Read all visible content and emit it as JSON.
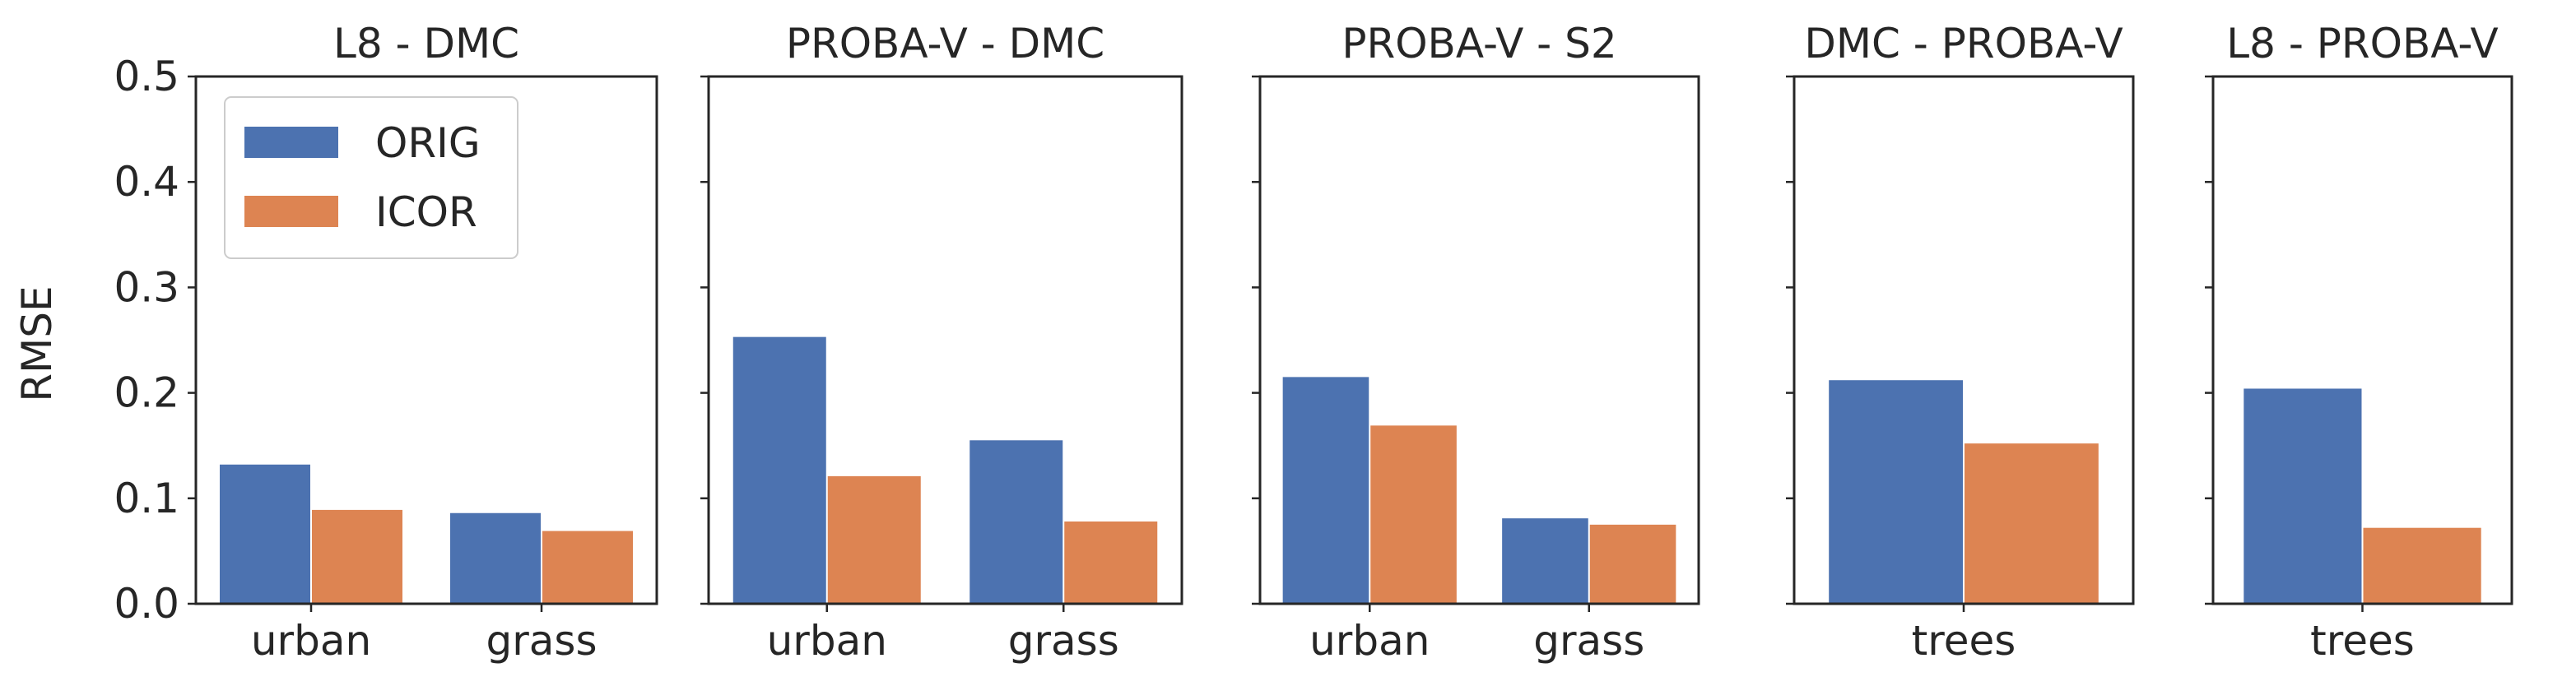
{
  "colors": {
    "orig": "#4c72b0",
    "icor": "#dd8452",
    "axis": "#262626"
  },
  "chart_data": {
    "type": "bar",
    "ylabel": "RMSE",
    "ylim": [
      0,
      0.5
    ],
    "yticks": [
      "0.0",
      "0.1",
      "0.2",
      "0.3",
      "0.4",
      "0.5"
    ],
    "legend": {
      "position": "top-left",
      "entries": [
        "ORIG",
        "ICOR"
      ]
    },
    "panels": [
      {
        "title": "L8 - DMC",
        "categories": [
          "urban",
          "grass"
        ],
        "series": [
          {
            "name": "ORIG",
            "values": [
              0.132,
              0.086
            ]
          },
          {
            "name": "ICOR",
            "values": [
              0.089,
              0.069
            ]
          }
        ]
      },
      {
        "title": "PROBA-V - DMC",
        "categories": [
          "urban",
          "grass"
        ],
        "series": [
          {
            "name": "ORIG",
            "values": [
              0.253,
              0.155
            ]
          },
          {
            "name": "ICOR",
            "values": [
              0.121,
              0.078
            ]
          }
        ]
      },
      {
        "title": "PROBA-V - S2",
        "categories": [
          "urban",
          "grass"
        ],
        "series": [
          {
            "name": "ORIG",
            "values": [
              0.215,
              0.081
            ]
          },
          {
            "name": "ICOR",
            "values": [
              0.169,
              0.075
            ]
          }
        ]
      },
      {
        "title": "DMC - PROBA-V",
        "categories": [
          "trees"
        ],
        "series": [
          {
            "name": "ORIG",
            "values": [
              0.212
            ]
          },
          {
            "name": "ICOR",
            "values": [
              0.152
            ]
          }
        ]
      },
      {
        "title": "L8 - PROBA-V",
        "categories": [
          "trees"
        ],
        "series": [
          {
            "name": "ORIG",
            "values": [
              0.204
            ]
          },
          {
            "name": "ICOR",
            "values": [
              0.072
            ]
          }
        ]
      }
    ]
  }
}
